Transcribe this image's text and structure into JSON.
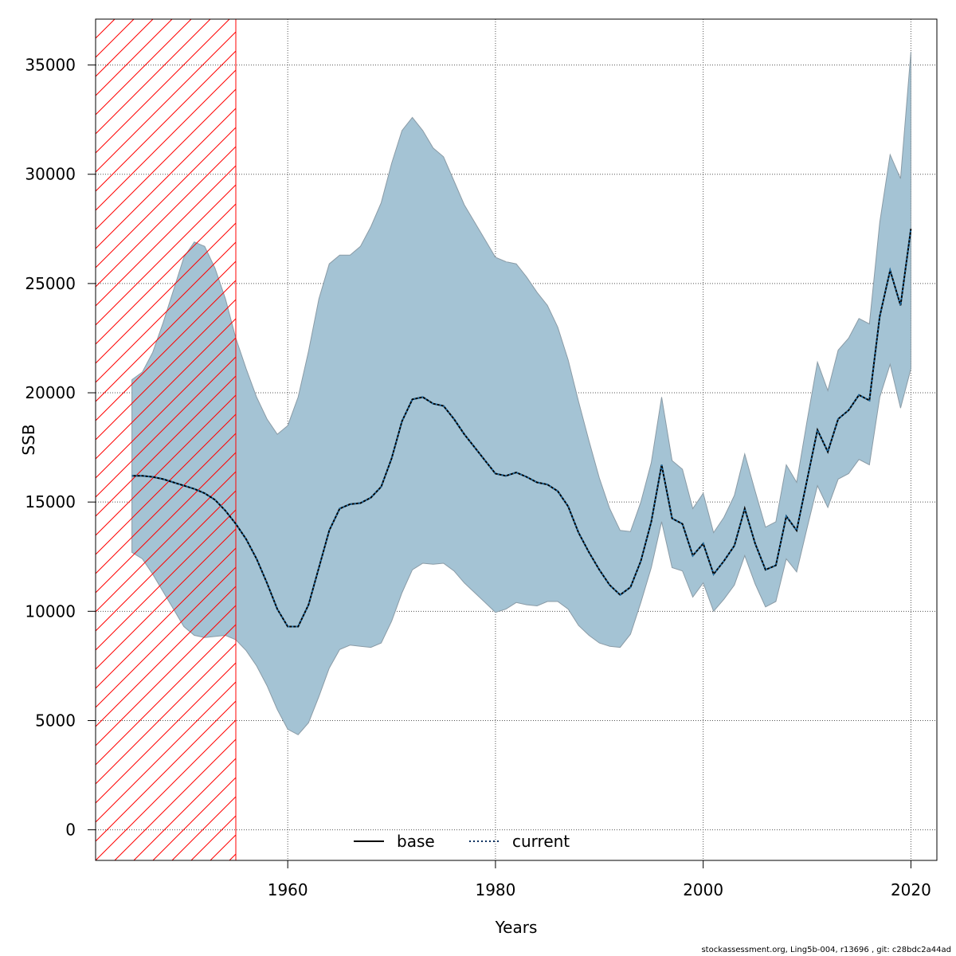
{
  "chart_data": {
    "type": "area",
    "title": "",
    "xlabel": "Years",
    "ylabel": "SSB",
    "xlim": [
      1941.5,
      2022.5
    ],
    "ylim": [
      -1400,
      37100
    ],
    "x_ticks": [
      1960,
      1980,
      2000,
      2020
    ],
    "y_ticks": [
      0,
      5000,
      10000,
      15000,
      20000,
      25000,
      30000,
      35000
    ],
    "grid": true,
    "legend_position": "bottom-center",
    "legend": [
      {
        "name": "base",
        "style": "solid",
        "color": "#000000"
      },
      {
        "name": "current",
        "style": "dotted",
        "color": "#002f5f"
      }
    ],
    "shaded_region": {
      "x_start": 1941.5,
      "x_end": 1955,
      "pattern": "hatched",
      "color": "#ff0000"
    },
    "interval_color": "#a4c3d4",
    "years": [
      1945,
      1946,
      1947,
      1948,
      1949,
      1950,
      1951,
      1952,
      1953,
      1954,
      1955,
      1956,
      1957,
      1958,
      1959,
      1960,
      1961,
      1962,
      1963,
      1964,
      1965,
      1966,
      1967,
      1968,
      1969,
      1970,
      1971,
      1972,
      1973,
      1974,
      1975,
      1976,
      1977,
      1978,
      1979,
      1980,
      1981,
      1982,
      1983,
      1984,
      1985,
      1986,
      1987,
      1988,
      1989,
      1990,
      1991,
      1992,
      1993,
      1994,
      1995,
      1996,
      1997,
      1998,
      1999,
      2000,
      2001,
      2002,
      2003,
      2004,
      2005,
      2006,
      2007,
      2008,
      2009,
      2010,
      2011,
      2012,
      2013,
      2014,
      2015,
      2016,
      2017,
      2018,
      2019,
      2020
    ],
    "series": [
      {
        "name": "current",
        "values": [
          16200,
          16200,
          16150,
          16050,
          15900,
          15750,
          15600,
          15400,
          15100,
          14600,
          14000,
          13300,
          12400,
          11300,
          10100,
          9300,
          9300,
          10300,
          12000,
          13700,
          14700,
          14900,
          14950,
          15200,
          15700,
          17000,
          18700,
          19700,
          19800,
          19500,
          19400,
          18800,
          18100,
          17500,
          16900,
          16300,
          16200,
          16350,
          16150,
          15900,
          15800,
          15500,
          14800,
          13600,
          12700,
          11900,
          11200,
          10750,
          11100,
          12300,
          14100,
          16700,
          14250,
          14000,
          12550,
          13100,
          11700,
          12300,
          13000,
          14700,
          13100,
          11900,
          12100,
          14350,
          13700,
          16000,
          18300,
          17300,
          18800,
          19200,
          19900,
          19650,
          23500,
          25600,
          24000,
          27500
        ],
        "lower": [
          12700,
          12400,
          11700,
          10900,
          10100,
          9300,
          8900,
          8800,
          8850,
          8900,
          8700,
          8200,
          7500,
          6600,
          5500,
          4600,
          4350,
          4900,
          6100,
          7400,
          8250,
          8450,
          8400,
          8350,
          8550,
          9550,
          10850,
          11900,
          12200,
          12150,
          12200,
          11850,
          11300,
          10850,
          10400,
          9950,
          10100,
          10400,
          10300,
          10250,
          10450,
          10450,
          10100,
          9350,
          8900,
          8550,
          8400,
          8350,
          8950,
          10400,
          12000,
          14100,
          12000,
          11850,
          10650,
          11300,
          10000,
          10550,
          11200,
          12550,
          11250,
          10200,
          10450,
          12400,
          11800,
          13800,
          15750,
          14750,
          16050,
          16300,
          16950,
          16700,
          19800,
          21300,
          19300,
          21100
        ],
        "upper": [
          20600,
          20950,
          21850,
          23200,
          24700,
          26200,
          26900,
          26700,
          25700,
          24300,
          22500,
          21100,
          19800,
          18800,
          18100,
          18500,
          19800,
          21900,
          24300,
          25900,
          26300,
          26300,
          26700,
          27600,
          28700,
          30500,
          32000,
          32600,
          32000,
          31200,
          30800,
          29700,
          28600,
          27800,
          27000,
          26200,
          26000,
          25900,
          25300,
          24600,
          24000,
          23000,
          21500,
          19600,
          17800,
          16100,
          14700,
          13700,
          13650,
          15000,
          16800,
          19800,
          16900,
          16500,
          14700,
          15400,
          13600,
          14300,
          15300,
          17200,
          15500,
          13850,
          14100,
          16700,
          15900,
          18700,
          21400,
          20100,
          21950,
          22500,
          23400,
          23150,
          27800,
          30900,
          29800,
          35600
        ]
      }
    ],
    "footer_text": "stockassessment.org, Ling5b-004, r13696 , git: c28bdc2a44ad"
  }
}
